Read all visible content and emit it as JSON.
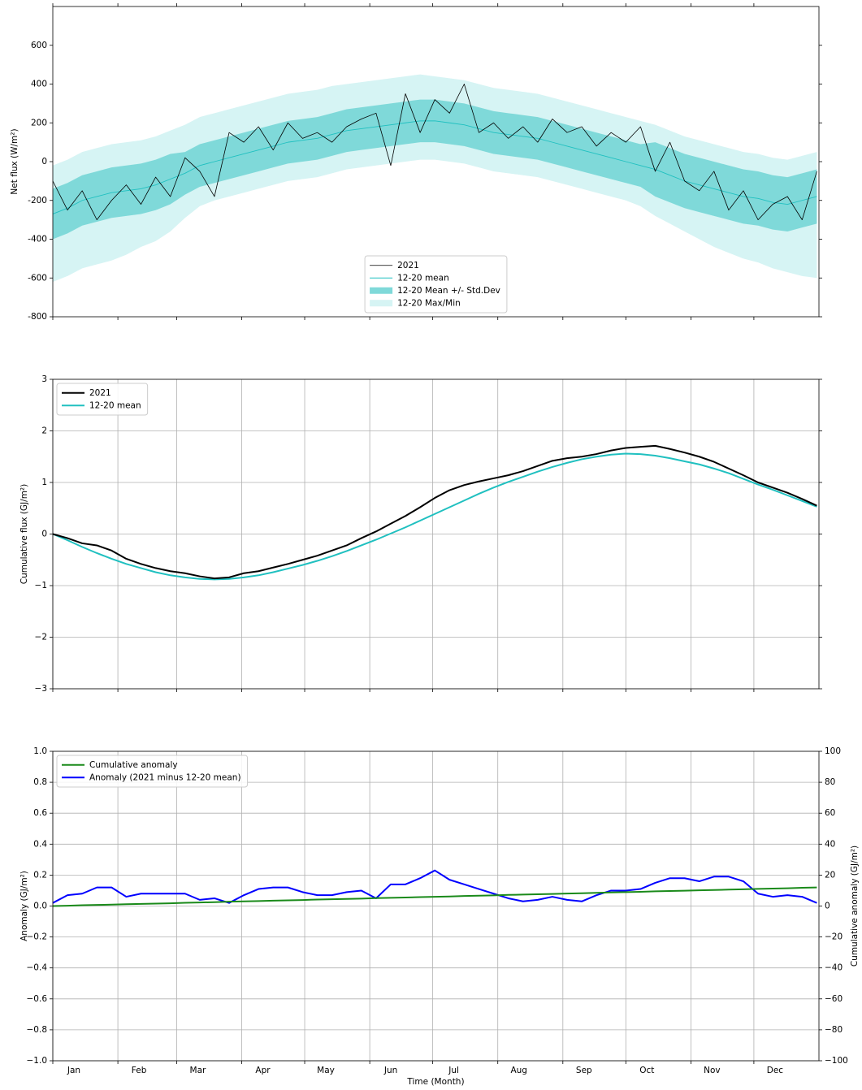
{
  "chart_data": [
    {
      "type": "line",
      "ylabel": "Net flux (W/m²)",
      "legend": "lower center",
      "grid": false,
      "xlim": [
        0,
        365
      ],
      "xticks": [
        0,
        31,
        59,
        90,
        120,
        151,
        181,
        212,
        243,
        273,
        304,
        334
      ],
      "ylim": [
        -800,
        800
      ],
      "yticks": [
        -800,
        -600,
        -400,
        -200,
        0,
        200,
        400,
        600
      ],
      "x": [
        0,
        7,
        14,
        21,
        28,
        35,
        42,
        49,
        56,
        63,
        70,
        77,
        84,
        91,
        98,
        105,
        112,
        119,
        126,
        133,
        140,
        147,
        154,
        161,
        168,
        175,
        182,
        189,
        196,
        203,
        210,
        217,
        224,
        231,
        238,
        245,
        252,
        259,
        266,
        273,
        280,
        287,
        294,
        301,
        308,
        315,
        322,
        329,
        336,
        343,
        350,
        357,
        364
      ],
      "series": [
        {
          "name": "2021",
          "kind": "line",
          "color": "#000000",
          "width": 0.8,
          "values": [
            -100,
            -250,
            -150,
            -300,
            -200,
            -120,
            -220,
            -80,
            -180,
            20,
            -50,
            -180,
            150,
            100,
            180,
            60,
            200,
            120,
            150,
            100,
            180,
            220,
            250,
            -20,
            350,
            150,
            320,
            250,
            400,
            150,
            200,
            120,
            180,
            100,
            220,
            150,
            180,
            80,
            150,
            100,
            180,
            -50,
            100,
            -100,
            -150,
            -50,
            -250,
            -150,
            -300,
            -220,
            -180,
            -300,
            -50
          ]
        },
        {
          "name": "12-20 mean",
          "kind": "line",
          "color": "#20c0c0",
          "width": 0.9,
          "values": [
            -270,
            -240,
            -200,
            -180,
            -160,
            -150,
            -140,
            -120,
            -90,
            -60,
            -20,
            0,
            20,
            40,
            60,
            80,
            100,
            110,
            120,
            140,
            160,
            170,
            180,
            190,
            200,
            210,
            210,
            200,
            190,
            170,
            150,
            140,
            130,
            120,
            100,
            80,
            60,
            40,
            20,
            0,
            -20,
            -40,
            -70,
            -100,
            -120,
            -140,
            -160,
            -180,
            -190,
            -210,
            -220,
            -200,
            -180
          ]
        },
        {
          "name": "12-20 Mean +/- Std.Dev",
          "kind": "band",
          "color": "#7fd9d9",
          "upper": [
            -140,
            -110,
            -70,
            -50,
            -30,
            -20,
            -10,
            10,
            40,
            50,
            90,
            110,
            130,
            150,
            170,
            190,
            210,
            220,
            230,
            250,
            270,
            280,
            290,
            300,
            310,
            320,
            320,
            310,
            300,
            280,
            260,
            250,
            240,
            230,
            210,
            190,
            170,
            150,
            130,
            110,
            90,
            100,
            70,
            40,
            20,
            0,
            -20,
            -40,
            -50,
            -70,
            -80,
            -60,
            -40
          ],
          "lower": [
            -400,
            -370,
            -330,
            -310,
            -290,
            -280,
            -270,
            -250,
            -220,
            -170,
            -130,
            -110,
            -90,
            -70,
            -50,
            -30,
            -10,
            0,
            10,
            30,
            50,
            60,
            70,
            80,
            90,
            100,
            100,
            90,
            80,
            60,
            40,
            30,
            20,
            10,
            -10,
            -30,
            -50,
            -70,
            -90,
            -110,
            -130,
            -180,
            -210,
            -240,
            -260,
            -280,
            -300,
            -320,
            -330,
            -350,
            -360,
            -340,
            -320
          ]
        },
        {
          "name": "12-20 Max/Min",
          "kind": "band",
          "color": "#d6f4f4",
          "upper": [
            -20,
            10,
            50,
            70,
            90,
            100,
            110,
            130,
            160,
            190,
            230,
            250,
            270,
            290,
            310,
            330,
            350,
            360,
            370,
            390,
            400,
            410,
            420,
            430,
            440,
            450,
            440,
            430,
            420,
            400,
            380,
            370,
            360,
            350,
            330,
            310,
            290,
            270,
            250,
            230,
            210,
            190,
            160,
            130,
            110,
            90,
            70,
            50,
            40,
            20,
            10,
            30,
            50
          ],
          "lower": [
            -620,
            -590,
            -550,
            -530,
            -510,
            -480,
            -440,
            -410,
            -360,
            -290,
            -230,
            -200,
            -180,
            -160,
            -140,
            -120,
            -100,
            -90,
            -80,
            -60,
            -40,
            -30,
            -20,
            -10,
            0,
            10,
            10,
            0,
            -10,
            -30,
            -50,
            -60,
            -70,
            -80,
            -100,
            -120,
            -140,
            -160,
            -180,
            -200,
            -230,
            -280,
            -320,
            -360,
            -400,
            -440,
            -470,
            -500,
            -520,
            -550,
            -570,
            -590,
            -600
          ]
        }
      ]
    },
    {
      "type": "line",
      "ylabel": "Cumulative flux (GJ/m²)",
      "legend": "upper left",
      "grid": true,
      "xlim": [
        0,
        365
      ],
      "xticks": [
        0,
        31,
        59,
        90,
        120,
        151,
        181,
        212,
        243,
        273,
        304,
        334
      ],
      "ylim": [
        -3,
        3
      ],
      "yticks": [
        {
          "value": -3,
          "label": "−3"
        },
        {
          "value": -2,
          "label": "−2"
        },
        {
          "value": -1,
          "label": "−1"
        },
        0,
        1,
        2,
        3
      ],
      "x": [
        0,
        7,
        14,
        21,
        28,
        35,
        42,
        49,
        56,
        63,
        70,
        77,
        84,
        91,
        98,
        105,
        112,
        119,
        126,
        133,
        140,
        147,
        154,
        161,
        168,
        175,
        182,
        189,
        196,
        203,
        210,
        217,
        224,
        231,
        238,
        245,
        252,
        259,
        266,
        273,
        280,
        287,
        294,
        301,
        308,
        315,
        322,
        329,
        336,
        343,
        350,
        357,
        364
      ],
      "series": [
        {
          "name": "2021",
          "kind": "line",
          "color": "#000000",
          "width": 2,
          "values": [
            0,
            -0.08,
            -0.18,
            -0.22,
            -0.32,
            -0.48,
            -0.58,
            -0.66,
            -0.72,
            -0.76,
            -0.82,
            -0.86,
            -0.84,
            -0.76,
            -0.72,
            -0.65,
            -0.58,
            -0.5,
            -0.42,
            -0.32,
            -0.22,
            -0.08,
            0.05,
            0.2,
            0.35,
            0.52,
            0.7,
            0.85,
            0.95,
            1.02,
            1.08,
            1.14,
            1.22,
            1.32,
            1.42,
            1.47,
            1.5,
            1.55,
            1.62,
            1.67,
            1.69,
            1.71,
            1.65,
            1.58,
            1.5,
            1.4,
            1.27,
            1.14,
            1,
            0.9,
            0.8,
            0.68,
            0.55
          ]
        },
        {
          "name": "12-20 mean",
          "kind": "line",
          "color": "#20c0c0",
          "width": 2,
          "values": [
            0,
            -0.12,
            -0.25,
            -0.37,
            -0.48,
            -0.58,
            -0.66,
            -0.74,
            -0.8,
            -0.84,
            -0.87,
            -0.88,
            -0.87,
            -0.84,
            -0.8,
            -0.74,
            -0.67,
            -0.6,
            -0.52,
            -0.43,
            -0.33,
            -0.22,
            -0.11,
            0.01,
            0.13,
            0.26,
            0.39,
            0.52,
            0.65,
            0.78,
            0.9,
            1.01,
            1.11,
            1.21,
            1.3,
            1.38,
            1.45,
            1.5,
            1.54,
            1.56,
            1.55,
            1.52,
            1.47,
            1.41,
            1.35,
            1.27,
            1.18,
            1.07,
            0.96,
            0.86,
            0.75,
            0.64,
            0.53
          ]
        }
      ]
    },
    {
      "type": "line",
      "ylabel": "Anomaly (GJ/m²)",
      "y2label": "Cumulative anomaly (GJ/m²)",
      "xlabel": "Time (Month)",
      "legend": "upper left",
      "grid": true,
      "xlim": [
        0,
        365
      ],
      "xticks": [
        {
          "value": 0,
          "label": "Jan"
        },
        {
          "value": 31,
          "label": "Feb"
        },
        {
          "value": 59,
          "label": "Mar"
        },
        {
          "value": 90,
          "label": "Apr"
        },
        {
          "value": 120,
          "label": "May"
        },
        {
          "value": 151,
          "label": "Jun"
        },
        {
          "value": 181,
          "label": "Jul"
        },
        {
          "value": 212,
          "label": "Aug"
        },
        {
          "value": 243,
          "label": "Sep"
        },
        {
          "value": 273,
          "label": "Oct"
        },
        {
          "value": 304,
          "label": "Nov"
        },
        {
          "value": 334,
          "label": "Dec"
        }
      ],
      "ylim": [
        -1,
        1
      ],
      "yticks": [
        {
          "value": -1,
          "label": "−1.0"
        },
        {
          "value": -0.8,
          "label": "−0.8"
        },
        {
          "value": -0.6,
          "label": "−0.6"
        },
        {
          "value": -0.4,
          "label": "−0.4"
        },
        {
          "value": -0.2,
          "label": "−0.2"
        },
        {
          "value": 0,
          "label": "0.0"
        },
        {
          "value": 0.2,
          "label": "0.2"
        },
        {
          "value": 0.4,
          "label": "0.4"
        },
        {
          "value": 0.6,
          "label": "0.6"
        },
        {
          "value": 0.8,
          "label": "0.8"
        },
        {
          "value": 1,
          "label": "1.0"
        }
      ],
      "y2lim": [
        -100,
        100
      ],
      "y2ticks": [
        {
          "value": -100,
          "label": "−100"
        },
        {
          "value": -80,
          "label": "−80"
        },
        {
          "value": -60,
          "label": "−60"
        },
        {
          "value": -40,
          "label": "−40"
        },
        {
          "value": -20,
          "label": "−20"
        },
        0,
        20,
        40,
        60,
        80,
        100
      ],
      "x": [
        0,
        7,
        14,
        21,
        28,
        35,
        42,
        49,
        56,
        63,
        70,
        77,
        84,
        91,
        98,
        105,
        112,
        119,
        126,
        133,
        140,
        147,
        154,
        161,
        168,
        175,
        182,
        189,
        196,
        203,
        210,
        217,
        224,
        231,
        238,
        245,
        252,
        259,
        266,
        273,
        280,
        287,
        294,
        301,
        308,
        315,
        322,
        329,
        336,
        343,
        350,
        357,
        364
      ],
      "series": [
        {
          "name": "Cumulative anomaly",
          "kind": "line",
          "color": "#1a8a1a",
          "width": 2,
          "axis": "y2",
          "values": [
            0,
            0.2,
            0.5,
            0.7,
            0.9,
            1.2,
            1.4,
            1.6,
            1.8,
            2.1,
            2.3,
            2.5,
            2.8,
            3,
            3.2,
            3.5,
            3.7,
            3.9,
            4.2,
            4.4,
            4.6,
            4.8,
            5.1,
            5.3,
            5.5,
            5.8,
            6,
            6.2,
            6.5,
            6.7,
            6.9,
            7.2,
            7.4,
            7.6,
            7.8,
            8.1,
            8.3,
            8.5,
            8.8,
            9,
            9.2,
            9.5,
            9.7,
            9.9,
            10.2,
            10.4,
            10.6,
            10.8,
            11.1,
            11.3,
            11.5,
            11.8,
            12
          ]
        },
        {
          "name": "Anomaly (2021 minus 12-20 mean)",
          "kind": "line",
          "color": "#0000ff",
          "width": 2,
          "values": [
            0.02,
            0.07,
            0.08,
            0.12,
            0.12,
            0.06,
            0.08,
            0.08,
            0.08,
            0.08,
            0.04,
            0.05,
            0.02,
            0.07,
            0.11,
            0.12,
            0.12,
            0.09,
            0.07,
            0.07,
            0.09,
            0.1,
            0.05,
            0.14,
            0.14,
            0.18,
            0.23,
            0.17,
            0.14,
            0.11,
            0.08,
            0.05,
            0.03,
            0.04,
            0.06,
            0.04,
            0.03,
            0.07,
            0.1,
            0.1,
            0.11,
            0.15,
            0.18,
            0.18,
            0.16,
            0.19,
            0.19,
            0.16,
            0.08,
            0.06,
            0.07,
            0.06,
            0.02
          ]
        }
      ]
    }
  ]
}
